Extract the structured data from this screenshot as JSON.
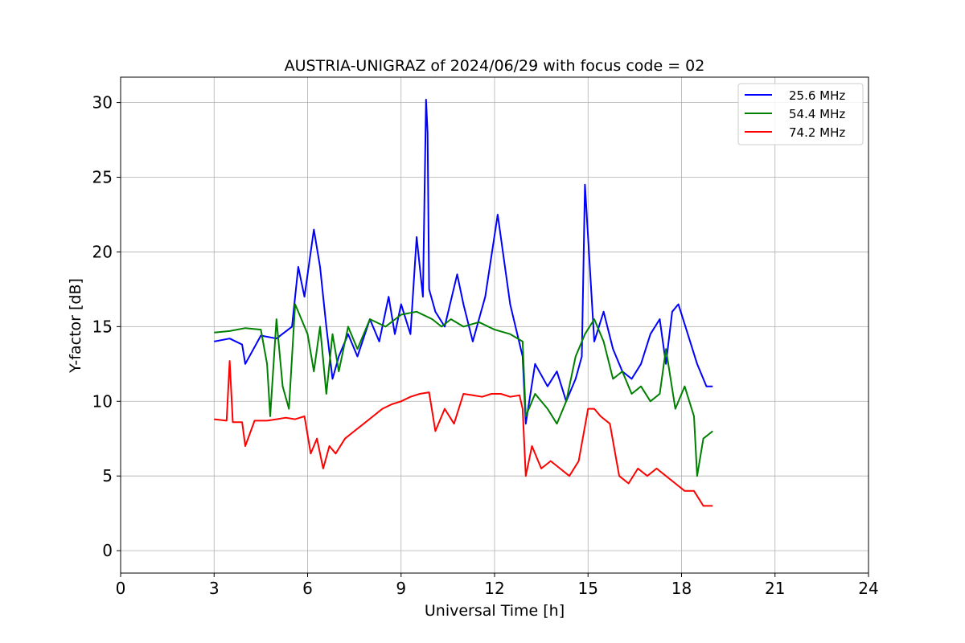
{
  "chart_data": {
    "type": "line",
    "title": "AUSTRIA-UNIGRAZ of 2024/06/29 with focus code = 02",
    "xlabel": "Universal Time [h]",
    "ylabel": "Y-factor [dB]",
    "xlim": [
      0,
      24
    ],
    "ylim": [
      -1.5,
      31.7
    ],
    "xticks": [
      0,
      3,
      6,
      9,
      12,
      15,
      18,
      21,
      24
    ],
    "yticks": [
      0,
      5,
      10,
      15,
      20,
      25,
      30
    ],
    "grid": true,
    "legend_position": "top-right",
    "series": [
      {
        "name": "25.6 MHz",
        "color": "#0000ff",
        "x": [
          3.0,
          3.5,
          3.9,
          4.0,
          4.5,
          5.0,
          5.5,
          5.7,
          5.9,
          6.2,
          6.4,
          6.6,
          6.8,
          7.0,
          7.3,
          7.6,
          8.0,
          8.3,
          8.6,
          8.8,
          9.0,
          9.3,
          9.5,
          9.7,
          9.8,
          9.85,
          9.9,
          10.1,
          10.4,
          10.8,
          11.0,
          11.3,
          11.7,
          12.1,
          12.5,
          12.9,
          13.0,
          13.3,
          13.7,
          14.0,
          14.3,
          14.6,
          14.8,
          14.9,
          15.2,
          15.5,
          15.8,
          16.1,
          16.4,
          16.7,
          17.0,
          17.3,
          17.5,
          17.7,
          17.9,
          18.2,
          18.5,
          18.8,
          19.0
        ],
        "y": [
          14.0,
          14.2,
          13.8,
          12.5,
          14.4,
          14.2,
          15.0,
          19.0,
          17.0,
          21.5,
          19.0,
          15.0,
          11.5,
          13.0,
          14.5,
          13.0,
          15.5,
          14.0,
          17.0,
          14.5,
          16.5,
          14.5,
          21.0,
          17.0,
          30.2,
          28.0,
          17.5,
          16.0,
          15.0,
          18.5,
          16.5,
          14.0,
          17.0,
          22.5,
          16.5,
          13.0,
          8.5,
          12.5,
          11.0,
          12.0,
          10.0,
          11.5,
          13.0,
          24.5,
          14.0,
          16.0,
          13.5,
          12.0,
          11.5,
          12.5,
          14.5,
          15.5,
          12.5,
          16.0,
          16.5,
          14.5,
          12.5,
          11.0,
          11.0
        ]
      },
      {
        "name": "54.4 MHz",
        "color": "#008000",
        "x": [
          3.0,
          3.5,
          4.0,
          4.5,
          4.7,
          4.8,
          5.0,
          5.2,
          5.4,
          5.6,
          5.8,
          6.0,
          6.2,
          6.4,
          6.6,
          6.8,
          7.0,
          7.3,
          7.6,
          8.0,
          8.5,
          9.0,
          9.5,
          10.0,
          10.3,
          10.6,
          11.0,
          11.5,
          12.0,
          12.5,
          12.9,
          13.0,
          13.3,
          13.7,
          14.0,
          14.3,
          14.6,
          14.9,
          15.2,
          15.5,
          15.8,
          16.1,
          16.4,
          16.7,
          17.0,
          17.3,
          17.5,
          17.8,
          18.1,
          18.4,
          18.5,
          18.7,
          19.0
        ],
        "y": [
          14.6,
          14.7,
          14.9,
          14.8,
          12.5,
          9.0,
          15.5,
          11.0,
          9.5,
          16.5,
          15.5,
          14.5,
          12.0,
          15.0,
          10.5,
          14.5,
          12.0,
          15.0,
          13.5,
          15.5,
          15.0,
          15.8,
          16.0,
          15.5,
          15.0,
          15.5,
          15.0,
          15.3,
          14.8,
          14.5,
          14.0,
          9.0,
          10.5,
          9.5,
          8.5,
          10.0,
          13.0,
          14.5,
          15.5,
          14.0,
          11.5,
          12.0,
          10.5,
          11.0,
          10.0,
          10.5,
          13.5,
          9.5,
          11.0,
          9.0,
          5.0,
          7.5,
          8.0
        ]
      },
      {
        "name": "74.2 MHz",
        "color": "#ff0000",
        "x": [
          3.0,
          3.4,
          3.5,
          3.6,
          3.9,
          4.0,
          4.3,
          4.7,
          5.0,
          5.3,
          5.6,
          5.9,
          6.1,
          6.3,
          6.5,
          6.7,
          6.9,
          7.2,
          7.5,
          7.8,
          8.1,
          8.4,
          8.7,
          9.0,
          9.3,
          9.6,
          9.9,
          10.1,
          10.4,
          10.7,
          11.0,
          11.3,
          11.6,
          11.9,
          12.2,
          12.5,
          12.8,
          12.9,
          13.0,
          13.2,
          13.5,
          13.8,
          14.1,
          14.4,
          14.7,
          15.0,
          15.2,
          15.4,
          15.7,
          16.0,
          16.3,
          16.6,
          16.9,
          17.2,
          17.5,
          17.8,
          18.1,
          18.4,
          18.7,
          19.0
        ],
        "y": [
          8.8,
          8.7,
          12.7,
          8.6,
          8.6,
          7.0,
          8.7,
          8.7,
          8.8,
          8.9,
          8.8,
          9.0,
          6.5,
          7.5,
          5.5,
          7.0,
          6.5,
          7.5,
          8.0,
          8.5,
          9.0,
          9.5,
          9.8,
          10.0,
          10.3,
          10.5,
          10.6,
          8.0,
          9.5,
          8.5,
          10.5,
          10.4,
          10.3,
          10.5,
          10.5,
          10.3,
          10.4,
          9.5,
          5.0,
          7.0,
          5.5,
          6.0,
          5.5,
          5.0,
          6.0,
          9.5,
          9.5,
          9.0,
          8.5,
          5.0,
          4.5,
          5.5,
          5.0,
          5.5,
          5.0,
          4.5,
          4.0,
          4.0,
          3.0,
          3.0
        ]
      }
    ]
  }
}
